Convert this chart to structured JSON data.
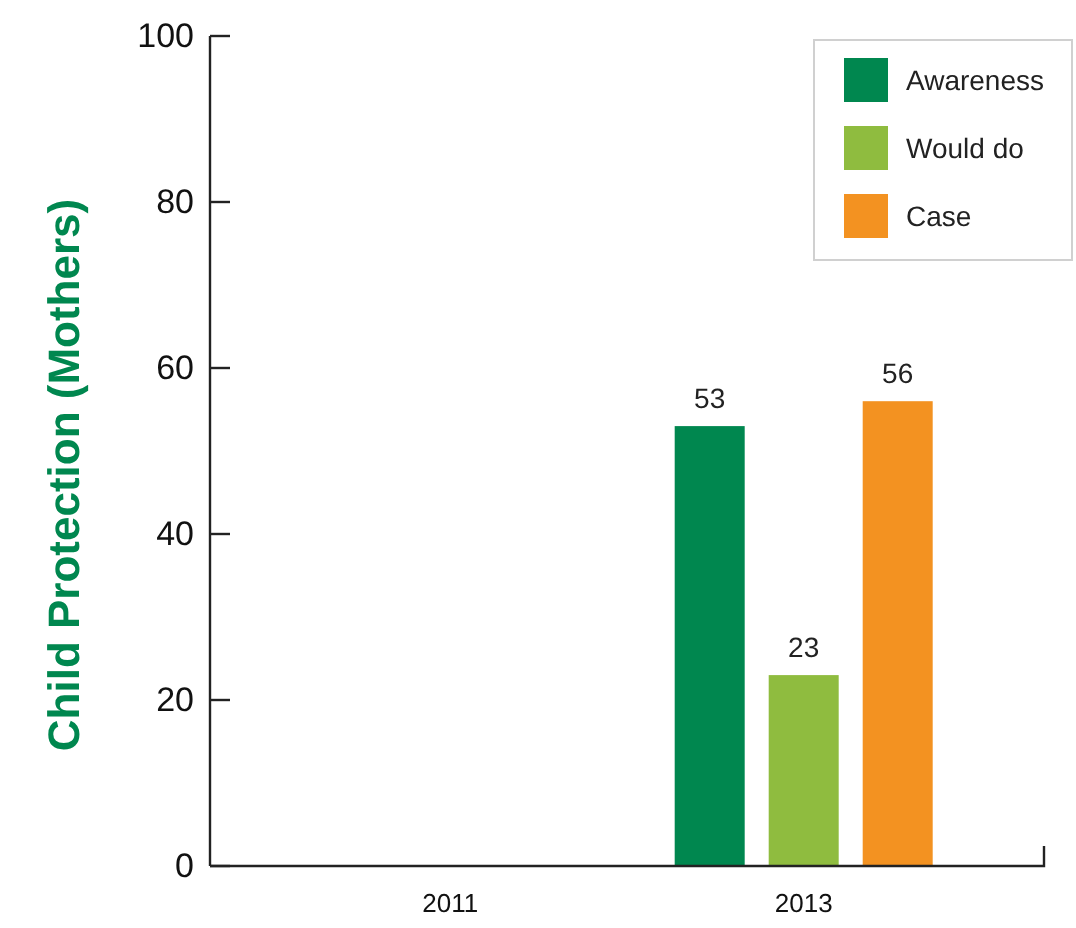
{
  "chart_data": {
    "type": "bar",
    "ylabel": "Child Protection (Mothers)",
    "categories": [
      "2011",
      "2013"
    ],
    "series": [
      {
        "name": "Awareness",
        "color": "#00874f",
        "values": [
          null,
          53
        ]
      },
      {
        "name": "Would do",
        "color": "#8fbc3f",
        "values": [
          null,
          23
        ]
      },
      {
        "name": "Case",
        "color": "#f39221",
        "values": [
          null,
          56
        ]
      }
    ],
    "ylim": [
      0,
      100
    ],
    "yticks": [
      0,
      20,
      40,
      60,
      80,
      100
    ],
    "data_labels": true,
    "legend": "top right",
    "grid": false
  }
}
